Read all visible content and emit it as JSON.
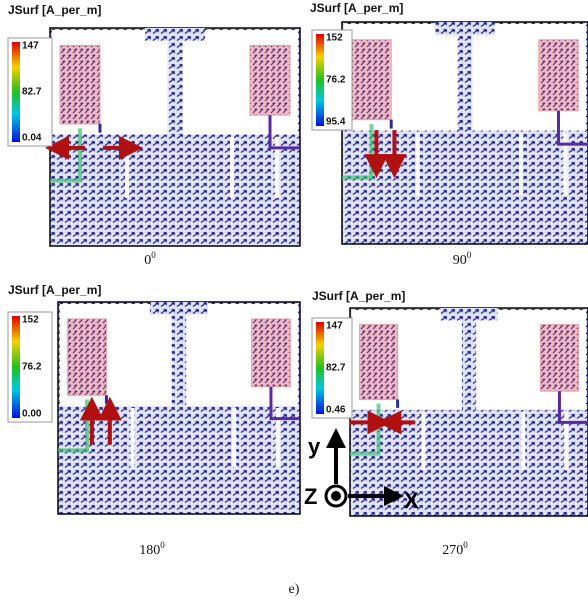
{
  "panels": [
    {
      "legend_title": "JSurf [A_per_m]",
      "scale": [
        "147",
        "82.7",
        "0.04"
      ],
      "angle": "0",
      "degree": "0"
    },
    {
      "legend_title": "JSurf [A_per_m]",
      "scale": [
        "152",
        "76.2",
        "95.4"
      ],
      "angle": "90",
      "degree": "0"
    },
    {
      "legend_title": "JSurf [A_per_m]",
      "scale": [
        "152",
        "76.2",
        "0.00"
      ],
      "angle": "180",
      "degree": "0"
    },
    {
      "legend_title": "JSurf [A_per_m]",
      "scale": [
        "147",
        "82.7",
        "0.46"
      ],
      "angle": "270",
      "degree": "0"
    }
  ],
  "axes": {
    "y": "y",
    "z": "Z",
    "x": "X"
  },
  "caption": "e)"
}
